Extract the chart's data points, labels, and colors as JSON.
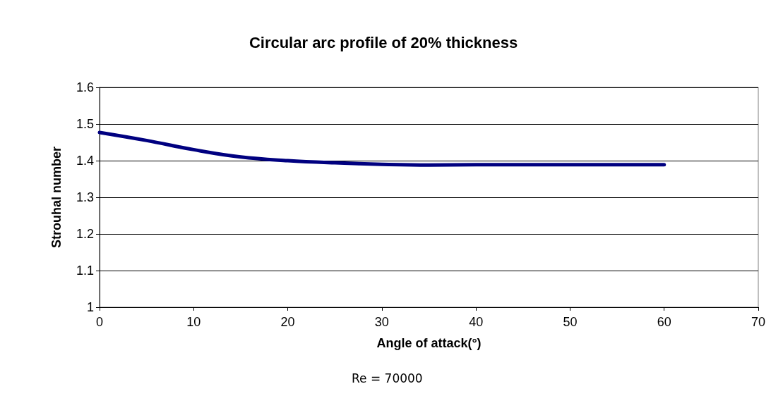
{
  "chart_data": {
    "type": "line",
    "title": "Circular arc profile of 20% thickness",
    "xlabel": "Angle of attack(°)",
    "ylabel": "Strouhal number",
    "annotations": [
      "Re = 70000"
    ],
    "x": [
      0,
      5,
      10,
      15,
      20,
      25,
      30,
      35,
      40,
      50,
      60
    ],
    "series": [
      {
        "color": "#000080",
        "values": [
          1.477,
          1.455,
          1.43,
          1.41,
          1.4,
          1.394,
          1.39,
          1.388,
          1.389,
          1.389,
          1.389
        ]
      }
    ],
    "xlim": [
      0,
      70
    ],
    "xticks": [
      0,
      10,
      20,
      30,
      40,
      50,
      60,
      70
    ],
    "ylim": [
      1,
      1.6
    ],
    "yticks": [
      1,
      1.1,
      1.2,
      1.3,
      1.4,
      1.5,
      1.6
    ],
    "grid": "y",
    "marker": "none",
    "line_style": "solid"
  }
}
